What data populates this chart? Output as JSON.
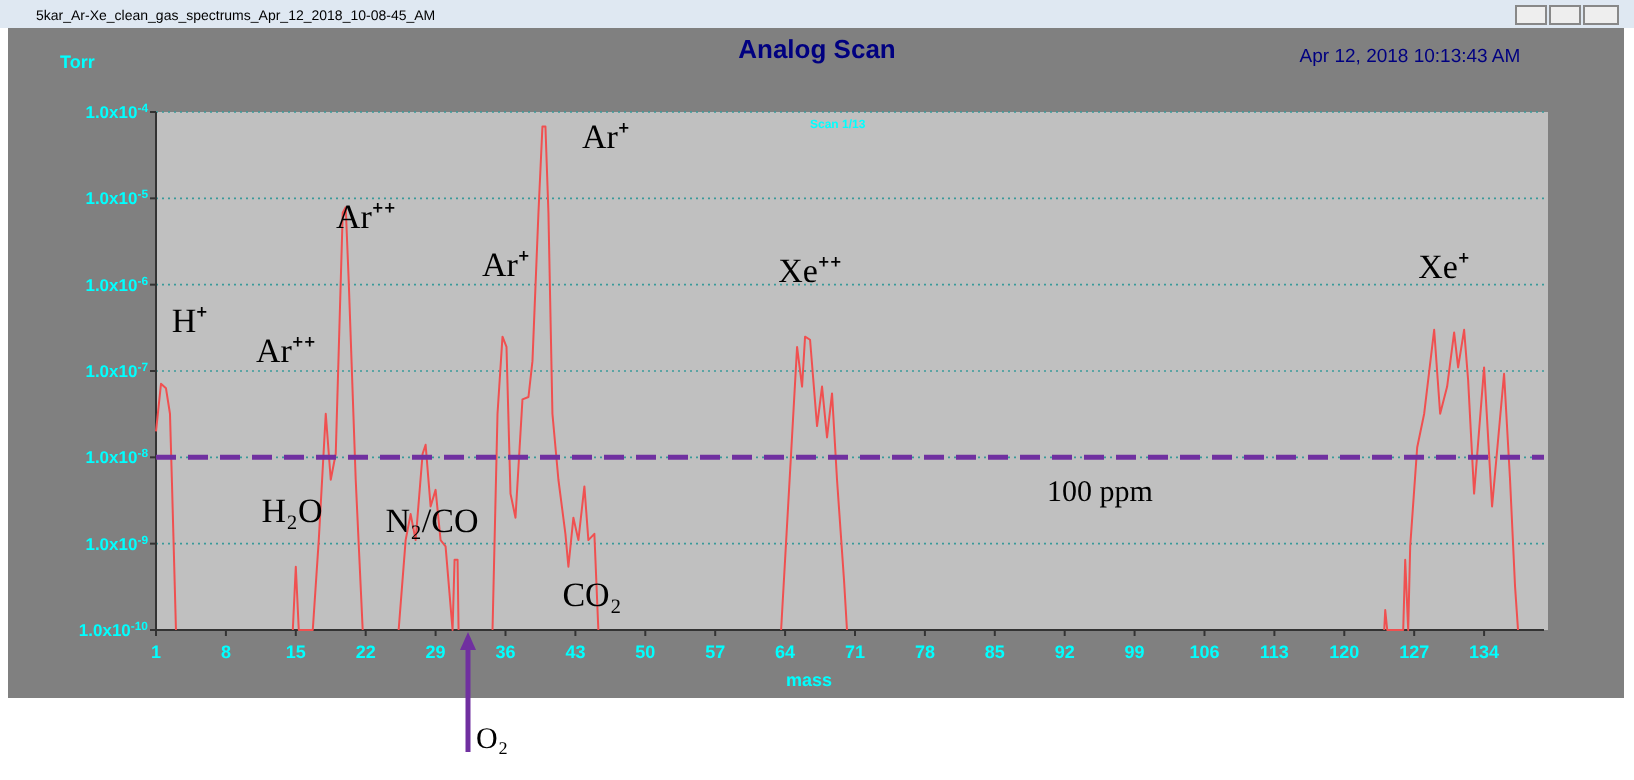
{
  "chart_data": {
    "type": "line",
    "title": "Analog Scan",
    "subtitle": "Apr 12, 2018  10:13:43 AM",
    "xlabel": "mass",
    "ylabel": "Torr",
    "log": "y",
    "grid": "y",
    "marker": "none",
    "line_style": "solid",
    "xlim": [
      1,
      140
    ],
    "xticks": [
      1,
      8,
      15,
      22,
      29,
      36,
      43,
      50,
      57,
      64,
      71,
      78,
      85,
      92,
      99,
      106,
      113,
      120,
      127,
      134
    ],
    "ylim": [
      1e-10,
      0.0001
    ],
    "yticks": [
      {
        "value": 1e-10,
        "label": "1.0x10$^{-10}$"
      },
      {
        "value": 1e-09,
        "label": "1.0x10$^{-9}$"
      },
      {
        "value": 1e-08,
        "label": "1.0x10$^{-8}$"
      },
      {
        "value": 1e-07,
        "label": "1.0x10$^{-7}$"
      },
      {
        "value": 1e-06,
        "label": "1.0x10$^{-6}$"
      },
      {
        "value": 1e-05,
        "label": "1.0x10$^{-5}$"
      },
      {
        "value": 0.0001,
        "label": "1.0x10$^{-4}$"
      }
    ],
    "series": [
      {
        "color": "#f05050",
        "x": [
          1.0,
          1.5,
          2.0,
          2.4,
          2.6,
          3.0
        ],
        "values": [
          2e-08,
          7.1e-08,
          6.3e-08,
          3.2e-08,
          5e-09,
          1e-10
        ]
      },
      {
        "color": "#f05050",
        "x": [
          14.7,
          15.0,
          15.3,
          16.7,
          17.3,
          18.0,
          18.5,
          19.0,
          19.7,
          20.0,
          20.3,
          21.0,
          21.7
        ],
        "values": [
          1e-10,
          5.4e-10,
          1e-10,
          1e-10,
          1.1e-09,
          3.2e-08,
          5.5e-09,
          1.1e-08,
          6.8e-06,
          7.9e-06,
          1.1e-06,
          5.5e-09,
          1e-10
        ]
      },
      {
        "color": "#f05050",
        "x": [
          25.3,
          26.0,
          26.5,
          27.0,
          27.7,
          28.0,
          28.5,
          29.0,
          29.5,
          30.0,
          30.7,
          30.9,
          31.2,
          31.3
        ],
        "values": [
          1e-10,
          1.1e-09,
          2.2e-09,
          1.1e-09,
          1.1e-08,
          1.4e-08,
          2.7e-09,
          4.2e-09,
          1.1e-09,
          9.3e-10,
          1e-10,
          6.5e-10,
          6.5e-10,
          1e-10
        ]
      },
      {
        "color": "#f05050",
        "x": [
          34.7,
          35.2,
          35.7,
          36.1,
          36.5,
          37.0,
          37.7,
          38.3,
          38.7,
          39.3,
          39.7,
          40.0,
          40.3,
          40.7,
          41.3,
          42.0,
          42.3,
          42.8,
          43.3,
          43.9,
          44.3,
          44.9,
          45.3
        ],
        "values": [
          1e-10,
          3.2e-08,
          2.5e-07,
          1.9e-07,
          3.8e-09,
          2e-09,
          4.7e-08,
          5e-08,
          1.3e-07,
          6.8e-06,
          6.8e-05,
          6.8e-05,
          6.8e-06,
          3.2e-08,
          5.5e-09,
          1.3e-09,
          5.4e-10,
          2e-09,
          1.1e-09,
          4.6e-09,
          1.1e-09,
          1.3e-09,
          1e-10
        ]
      },
      {
        "color": "#f05050",
        "x": [
          63.6,
          64.6,
          65.2,
          65.7,
          66.0,
          66.5,
          67.2,
          67.7,
          68.2,
          68.7,
          69.2,
          69.9,
          70.2
        ],
        "values": [
          1e-10,
          1.1e-08,
          1.9e-07,
          6.6e-08,
          2.5e-07,
          2.3e-07,
          2.3e-08,
          6.6e-08,
          1.7e-08,
          5.5e-08,
          5.5e-09,
          3.8e-10,
          1e-10
        ]
      },
      {
        "color": "#f05050",
        "x": [
          124.0,
          124.1,
          124.3,
          125.9,
          126.1,
          126.4,
          126.6,
          127.3,
          128.0,
          129.0,
          129.6,
          130.3,
          131.0,
          131.4,
          132.0,
          132.4,
          133.0,
          134.0,
          134.8,
          136.0,
          136.6,
          137.1,
          137.4
        ],
        "values": [
          1e-10,
          1.7e-10,
          1e-10,
          1e-10,
          6.5e-10,
          1e-10,
          9.3e-10,
          1.3e-08,
          3.2e-08,
          3e-07,
          3.2e-08,
          6.6e-08,
          2.8e-07,
          1.1e-07,
          3e-07,
          7.9e-08,
          3.8e-09,
          1.1e-07,
          2.7e-09,
          9.3e-08,
          5.5e-09,
          3.2e-10,
          1e-10
        ]
      }
    ],
    "ref_lines": [
      {
        "axis": "y",
        "value": 1e-08,
        "label": "100 ppm",
        "color": "#7030a0",
        "line_style": "dashed"
      }
    ],
    "annotations": [
      "5kar_Ar-Xe_clean_gas_spectrums_Apr_12_2018_10-08-45_AM",
      "Scan 1/13",
      "H⁺",
      "Ar⁺⁺",
      "Ar⁺⁺",
      "Ar⁺",
      "Ar⁺",
      "Xe⁺⁺",
      "Xe⁺",
      "H₂O",
      "N₂/CO",
      "CO₂",
      "O₂"
    ]
  }
}
